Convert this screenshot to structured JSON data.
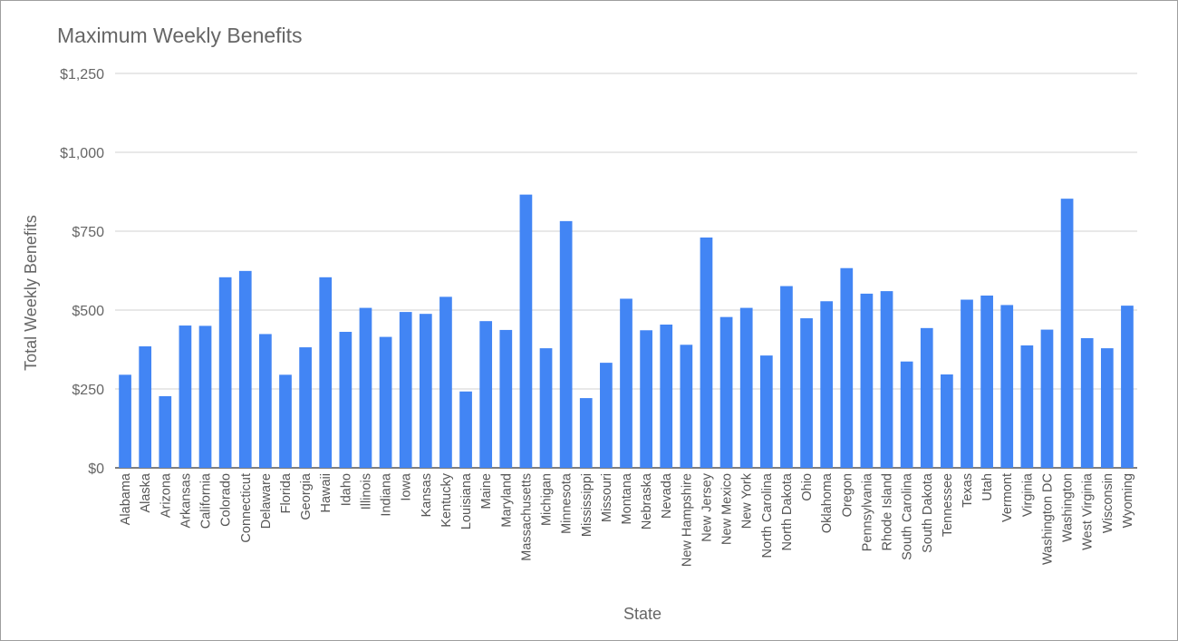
{
  "chart_data": {
    "type": "bar",
    "title": "Maximum Weekly Benefits",
    "xlabel": "State",
    "ylabel": "Total Weekly Benefits",
    "ylim": [
      0,
      1250
    ],
    "yticks": [
      "$0",
      "$250",
      "$500",
      "$750",
      "$1,000",
      "$1,250"
    ],
    "grid": true,
    "legend": "none",
    "bar_color": "#4285f4",
    "categories": [
      "Alabama",
      "Alaska",
      "Arizona",
      "Arkansas",
      "California",
      "Colorado",
      "Connecticut",
      "Delaware",
      "Florida",
      "Georgia",
      "Hawaii",
      "Idaho",
      "Illinois",
      "Indiana",
      "Iowa",
      "Kansas",
      "Kentucky",
      "Louisiana",
      "Maine",
      "Maryland",
      "Massachusetts",
      "Michigan",
      "Minnesota",
      "Mississippi",
      "Missouri",
      "Montana",
      "Nebraska",
      "Nevada",
      "New Hampshire",
      "New Jersey",
      "New Mexico",
      "New York",
      "North Carolina",
      "North Dakota",
      "Ohio",
      "Oklahoma",
      "Oregon",
      "Pennsylvania",
      "Rhode Island",
      "South Carolina",
      "South Dakota",
      "Tennessee",
      "Texas",
      "Utah",
      "Vermont",
      "Virginia",
      "Washington DC",
      "Washington",
      "West Virginia",
      "Wisconsin",
      "Wyoming"
    ],
    "values": [
      295,
      385,
      227,
      451,
      450,
      604,
      624,
      424,
      295,
      382,
      604,
      431,
      507,
      415,
      494,
      488,
      542,
      242,
      465,
      437,
      866,
      379,
      782,
      221,
      333,
      536,
      436,
      454,
      390,
      730,
      478,
      507,
      356,
      576,
      474,
      528,
      633,
      552,
      560,
      337,
      443,
      296,
      533,
      546,
      516,
      388,
      438,
      853,
      411,
      379,
      514
    ]
  }
}
